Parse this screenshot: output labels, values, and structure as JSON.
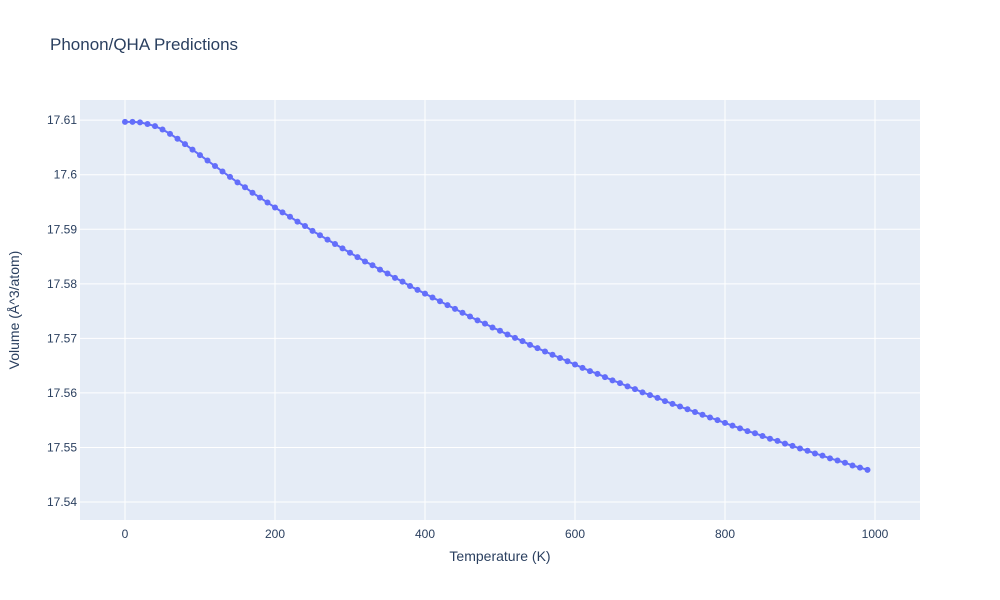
{
  "chart_data": {
    "type": "line",
    "title": "Phonon/QHA Predictions",
    "xlabel": "Temperature (K)",
    "ylabel": "Volume (Å^3/atom)",
    "xlim": [
      -60,
      1060
    ],
    "ylim": [
      17.5367,
      17.6137
    ],
    "x_ticks": [
      0,
      200,
      400,
      600,
      800,
      1000
    ],
    "x_tick_labels": [
      "0",
      "200",
      "400",
      "600",
      "800",
      "1000"
    ],
    "y_ticks": [
      17.54,
      17.55,
      17.56,
      17.57,
      17.58,
      17.59,
      17.6,
      17.61
    ],
    "y_tick_labels": [
      "17.54",
      "17.55",
      "17.56",
      "17.57",
      "17.58",
      "17.59",
      "17.6",
      "17.61"
    ],
    "grid": true,
    "colors": {
      "plot_bg": "#e5ecf6",
      "grid": "#ffffff",
      "series": "#636efa",
      "text": "#2a3f5f"
    },
    "series": [
      {
        "x": [
          0,
          10,
          20,
          30,
          40,
          50,
          60,
          70,
          80,
          90,
          100,
          110,
          120,
          130,
          140,
          150,
          160,
          170,
          180,
          190,
          200,
          210,
          220,
          230,
          240,
          250,
          260,
          270,
          280,
          290,
          300,
          310,
          320,
          330,
          340,
          350,
          360,
          370,
          380,
          390,
          400,
          410,
          420,
          430,
          440,
          450,
          460,
          470,
          480,
          490,
          500,
          510,
          520,
          530,
          540,
          550,
          560,
          570,
          580,
          590,
          600,
          610,
          620,
          630,
          640,
          650,
          660,
          670,
          680,
          690,
          700,
          710,
          720,
          730,
          740,
          750,
          760,
          770,
          780,
          790,
          800,
          810,
          820,
          830,
          840,
          850,
          860,
          870,
          880,
          890,
          900,
          910,
          920,
          930,
          940,
          950,
          960,
          970,
          980,
          990
        ],
        "values": [
          17.6097,
          17.6097,
          17.6096,
          17.6093,
          17.6089,
          17.6083,
          17.6075,
          17.6066,
          17.6056,
          17.6046,
          17.6036,
          17.6026,
          17.6016,
          17.6006,
          17.5996,
          17.5986,
          17.5977,
          17.5967,
          17.5958,
          17.5949,
          17.594,
          17.5931,
          17.5923,
          17.5914,
          17.5906,
          17.5897,
          17.5889,
          17.5881,
          17.5873,
          17.5865,
          17.5857,
          17.5849,
          17.5841,
          17.5834,
          17.5826,
          17.5819,
          17.5811,
          17.5804,
          17.5796,
          17.5789,
          17.5782,
          17.5775,
          17.5768,
          17.5761,
          17.5754,
          17.5747,
          17.574,
          17.5733,
          17.5727,
          17.572,
          17.5714,
          17.5707,
          17.5701,
          17.5695,
          17.5688,
          17.5682,
          17.5676,
          17.567,
          17.5664,
          17.5658,
          17.5652,
          17.5646,
          17.564,
          17.5635,
          17.5629,
          17.5623,
          17.5618,
          17.5612,
          17.5607,
          17.5601,
          17.5596,
          17.5591,
          17.5585,
          17.558,
          17.5575,
          17.557,
          17.5565,
          17.556,
          17.5555,
          17.555,
          17.5545,
          17.554,
          17.5535,
          17.553,
          17.5526,
          17.5521,
          17.5516,
          17.5512,
          17.5507,
          17.5503,
          17.5498,
          17.5494,
          17.5489,
          17.5485,
          17.548,
          17.5476,
          17.5472,
          17.5467,
          17.5463,
          17.5459
        ]
      }
    ]
  }
}
